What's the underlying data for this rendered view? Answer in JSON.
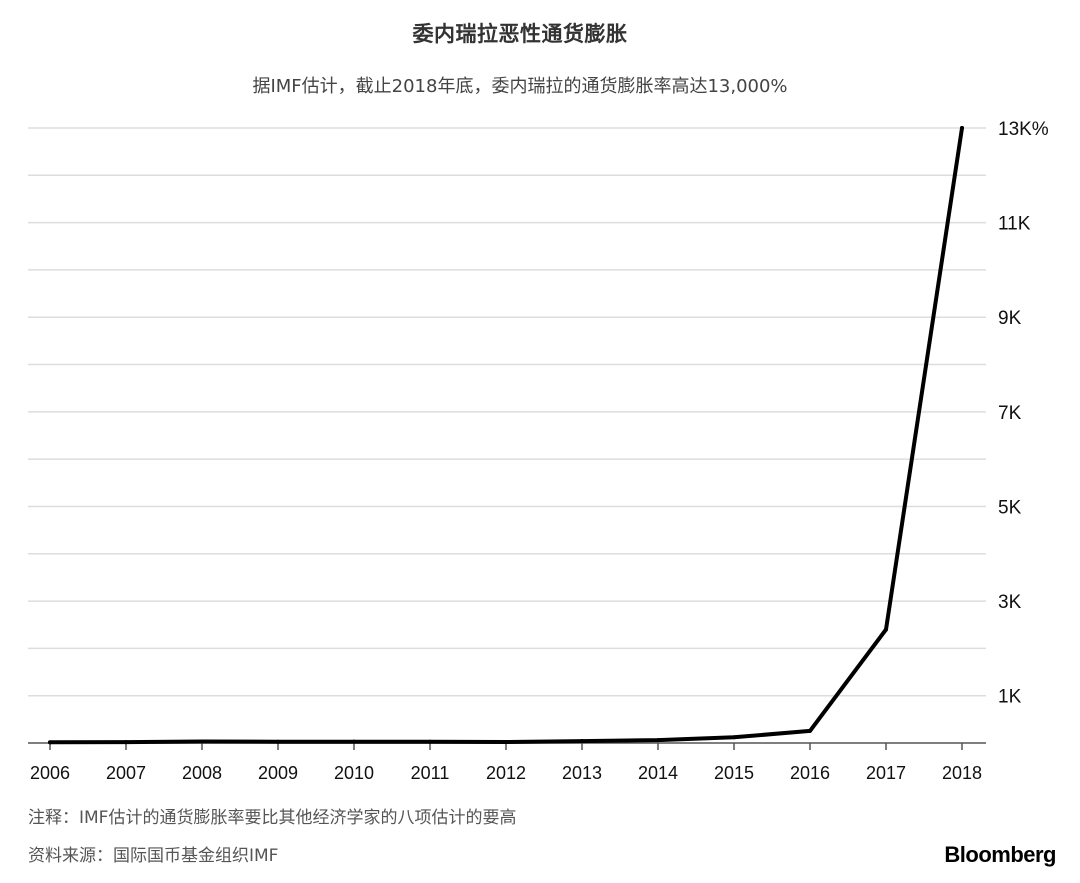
{
  "title": "委内瑞拉恶性通货膨胀",
  "subtitle": "据IMF估计，截止2018年底，委内瑞拉的通货膨胀率高达13,000%",
  "note": "注释：IMF估计的通货膨胀率要比其他经济学家的八项估计的要高",
  "source": "资料来源：国际国币基金组织IMF",
  "logo": "Bloomberg",
  "chart_data": {
    "type": "line",
    "title": "委内瑞拉恶性通货膨胀",
    "subtitle": "据IMF估计，截止2018年底，委内瑞拉的通货膨胀率高达13,000%",
    "xlabel": "",
    "ylabel": "",
    "x": [
      "2006",
      "2007",
      "2008",
      "2009",
      "2010",
      "2011",
      "2012",
      "2013",
      "2014",
      "2015",
      "2016",
      "2017",
      "2018"
    ],
    "series": [
      {
        "values": [
          14,
          19,
          31,
          27,
          28,
          26,
          21,
          41,
          62,
          121,
          255,
          2400,
          13000
        ]
      }
    ],
    "yticks": [
      {
        "value": 1000,
        "label": "1K"
      },
      {
        "value": 3000,
        "label": "3K"
      },
      {
        "value": 5000,
        "label": "5K"
      },
      {
        "value": 7000,
        "label": "7K"
      },
      {
        "value": 9000,
        "label": "9K"
      },
      {
        "value": 11000,
        "label": "11K"
      },
      {
        "value": 13000,
        "label": "13K%"
      }
    ],
    "ylim": [
      0,
      13000
    ],
    "grid": true,
    "grid_step": 1000,
    "y_axis_side": "right",
    "line_color": "#000000",
    "grid_color": "#dddddd"
  }
}
